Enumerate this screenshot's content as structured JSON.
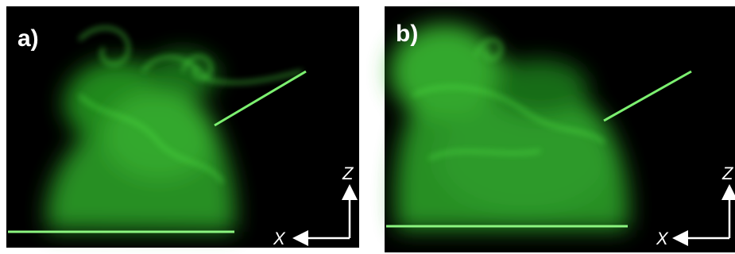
{
  "panels": [
    {
      "label": "a)",
      "axes": {
        "x": "X",
        "z": "Z"
      }
    },
    {
      "label": "b)",
      "axes": {
        "x": "X",
        "z": "Z"
      }
    }
  ]
}
